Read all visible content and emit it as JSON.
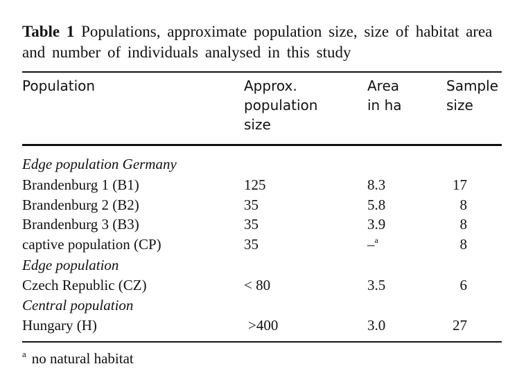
{
  "caption": {
    "label": "Table 1",
    "text": "Populations, approximate population size, size of habitat area and number of individuals analysed in this study"
  },
  "headers": {
    "population": "Population",
    "size_line1": "Approx.",
    "size_line2": "population",
    "size_line3": "size",
    "area_line1": "Area",
    "area_line2": "in ha",
    "sample_line1": "Sample",
    "sample_line2": "size"
  },
  "groups": {
    "germany": "Edge population Germany",
    "edge": "Edge population",
    "central": "Central population"
  },
  "rows": [
    {
      "name": "Brandenburg 1 (B1)",
      "size": "125",
      "area": "8.3",
      "sample": "17"
    },
    {
      "name": "Brandenburg 2 (B2)",
      "size": "35",
      "area": "5.8",
      "sample": "8"
    },
    {
      "name": "Brandenburg 3 (B3)",
      "size": "35",
      "area": "3.9",
      "sample": "8"
    },
    {
      "name": "captive population (CP)",
      "size": "35",
      "area": "–",
      "area_note": "a",
      "sample": "8"
    },
    {
      "name": "Czech Republic (CZ)",
      "size": "< 80",
      "area": "3.5",
      "sample": "6"
    },
    {
      "name": "Hungary (H)",
      "size": ">400",
      "area": "3.0",
      "sample": "27"
    }
  ],
  "footnote": {
    "marker": "a",
    "text": "no natural habitat"
  }
}
